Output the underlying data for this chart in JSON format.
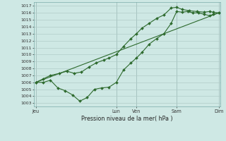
{
  "xlabel": "Pression niveau de la mer( hPa )",
  "ylim": [
    1002.5,
    1017.5
  ],
  "ytick_vals": [
    1003,
    1004,
    1005,
    1006,
    1007,
    1008,
    1009,
    1010,
    1011,
    1012,
    1013,
    1014,
    1015,
    1016,
    1017
  ],
  "xtick_labels": [
    "Jeu",
    "Lun",
    "Ven",
    "Sam",
    "Dim"
  ],
  "xtick_positions": [
    0.0,
    0.44,
    0.55,
    0.77,
    1.0
  ],
  "bg_color": "#cee8e4",
  "line_color": "#2d6a2d",
  "grid_major_color": "#b0ccc8",
  "grid_minor_color": "#c8ddd9",
  "line1_x": [
    0.0,
    0.04,
    0.08,
    0.12,
    0.16,
    0.2,
    0.24,
    0.28,
    0.32,
    0.36,
    0.4,
    0.44,
    0.48,
    0.52,
    0.55,
    0.58,
    0.62,
    0.66,
    0.7,
    0.74,
    0.77,
    0.8,
    0.83,
    0.86,
    0.89,
    0.92,
    0.95,
    0.97,
    1.0
  ],
  "line1_y": [
    1006.0,
    1006.0,
    1006.3,
    1005.2,
    1004.8,
    1004.2,
    1003.3,
    1003.8,
    1005.0,
    1005.2,
    1005.3,
    1006.0,
    1007.8,
    1008.8,
    1009.5,
    1010.3,
    1011.5,
    1012.3,
    1013.0,
    1014.5,
    1016.2,
    1016.1,
    1016.2,
    1016.0,
    1016.0,
    1015.8,
    1015.6,
    1015.8,
    1016.0
  ],
  "line2_x": [
    0.0,
    0.04,
    0.08,
    0.13,
    0.17,
    0.21,
    0.25,
    0.29,
    0.33,
    0.37,
    0.4,
    0.44,
    0.48,
    0.52,
    0.55,
    0.58,
    0.62,
    0.66,
    0.7,
    0.74,
    0.77,
    0.8,
    0.84,
    0.88,
    0.92,
    0.95,
    0.97,
    1.0
  ],
  "line2_y": [
    1006.0,
    1006.5,
    1007.0,
    1007.3,
    1007.6,
    1007.3,
    1007.5,
    1008.2,
    1008.8,
    1009.2,
    1009.5,
    1010.0,
    1011.2,
    1012.3,
    1013.0,
    1013.8,
    1014.5,
    1015.2,
    1015.7,
    1016.7,
    1016.8,
    1016.5,
    1016.3,
    1016.2,
    1016.1,
    1016.2,
    1016.1,
    1016.0
  ],
  "line3_x": [
    0.0,
    0.5,
    1.0
  ],
  "line3_y": [
    1006.0,
    1011.0,
    1016.0
  ],
  "marker_size": 2.0,
  "lw": 0.8
}
